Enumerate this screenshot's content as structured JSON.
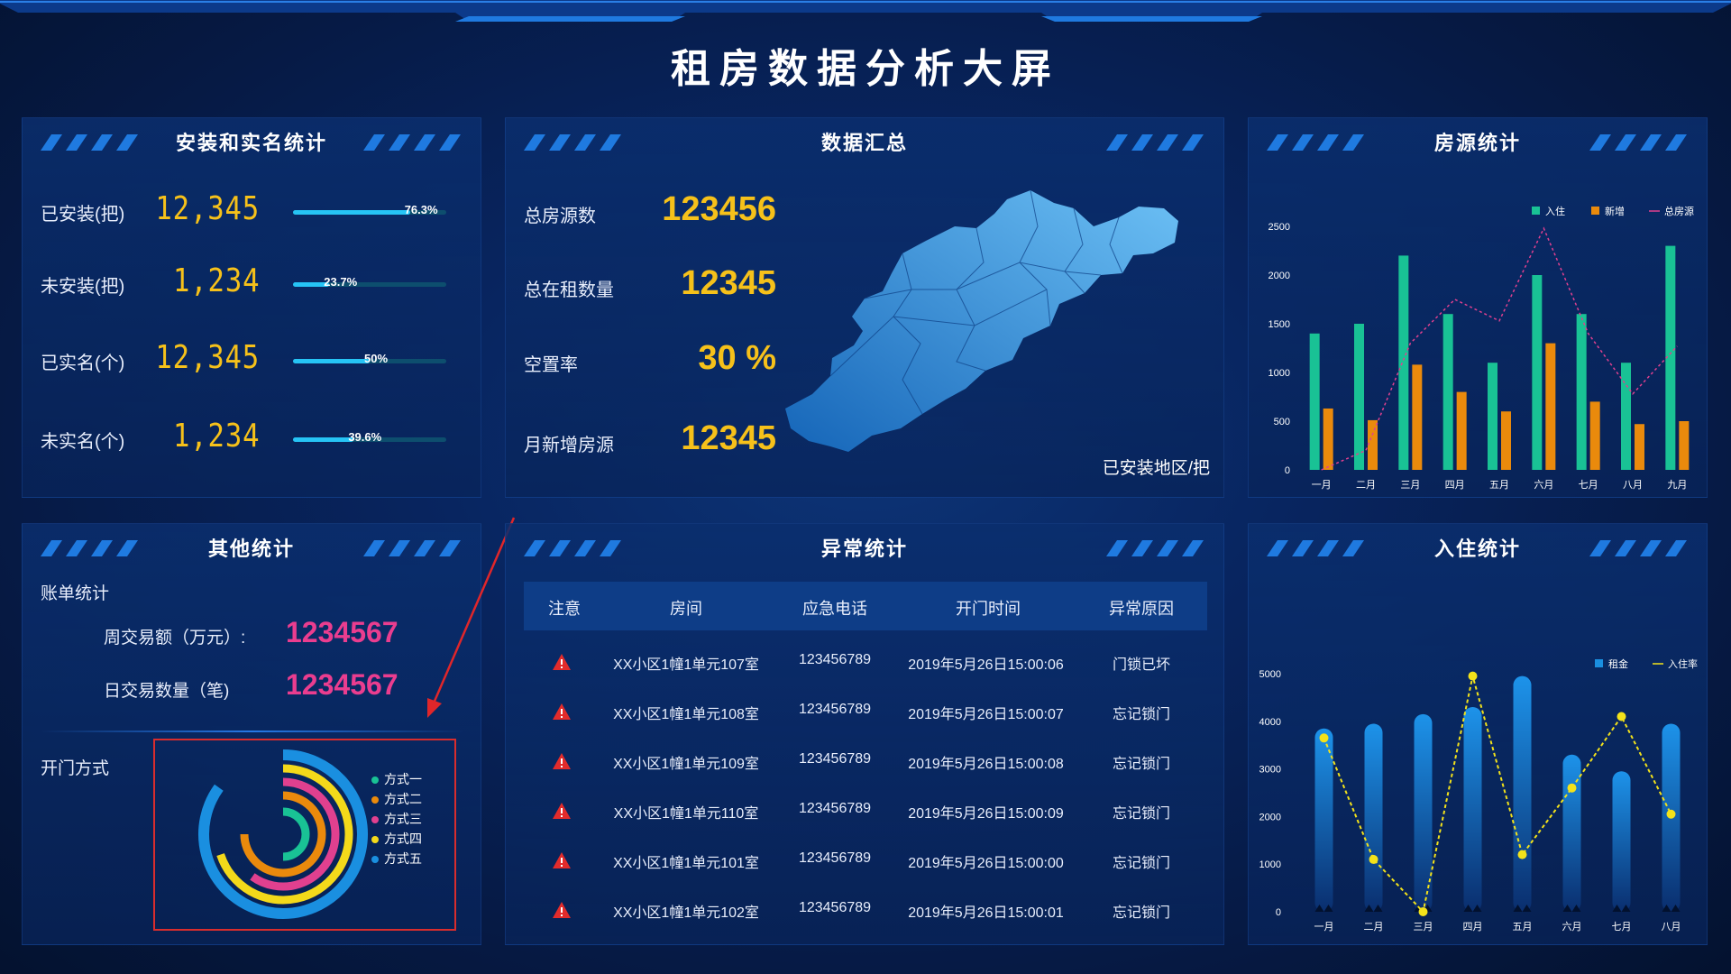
{
  "title": "租房数据分析大屏",
  "install": {
    "title": "安装和实名统计",
    "rows": [
      {
        "label": "已安装(把)",
        "value": "12,345",
        "percent_text": "76.3%",
        "percent": 76.3
      },
      {
        "label": "未安装(把)",
        "value": "1,234",
        "percent_text": "23.7%",
        "percent": 23.7
      },
      {
        "label": "已实名(个)",
        "value": "12,345",
        "percent_text": "50%",
        "percent": 50
      },
      {
        "label": "未实名(个)",
        "value": "1,234",
        "percent_text": "39.6%",
        "percent": 39.6
      }
    ]
  },
  "summary": {
    "title": "数据汇总",
    "rows": [
      {
        "label": "总房源数",
        "value": "123456"
      },
      {
        "label": "总在租数量",
        "value": "12345"
      },
      {
        "label": "空置率",
        "value": "30 %"
      },
      {
        "label": "月新增房源",
        "value": "12345"
      }
    ],
    "map_caption": "已安装地区/把"
  },
  "housing": {
    "title": "房源统计",
    "chart_data": {
      "type": "bar",
      "categories": [
        "一月",
        "二月",
        "三月",
        "四月",
        "五月",
        "六月",
        "七月",
        "八月",
        "九月"
      ],
      "ylim": [
        0,
        2500
      ],
      "yticks": [
        0,
        500,
        1000,
        1500,
        2000,
        2500
      ],
      "series": [
        {
          "name": "入住",
          "type": "bar",
          "color": "#19c295",
          "values": [
            1400,
            1500,
            2200,
            1600,
            1100,
            2000,
            1600,
            1100,
            2300
          ]
        },
        {
          "name": "新增",
          "type": "bar",
          "color": "#ea8a0c",
          "values": [
            630,
            510,
            1080,
            800,
            600,
            1300,
            700,
            470,
            500
          ]
        },
        {
          "name": "总房源",
          "type": "line",
          "color": "#e0408f",
          "values": [
            0,
            200,
            1300,
            1750,
            1530,
            2480,
            1400,
            780,
            1270
          ]
        }
      ],
      "legend": "top-right"
    }
  },
  "other": {
    "title": "其他统计",
    "bill_title": "账单统计",
    "weekly_label": "周交易额（万元）:",
    "weekly_value": "1234567",
    "daily_label": "日交易数量（笔)",
    "daily_value": "1234567",
    "door_title": "开门方式",
    "chart_data": {
      "type": "pie",
      "style": "radial-bar",
      "categories": [
        "方式一",
        "方式二",
        "方式三",
        "方式四",
        "方式五"
      ],
      "colors": [
        "#19c295",
        "#ea8a0c",
        "#e0408f",
        "#f3d91a",
        "#1a8fe0"
      ],
      "values": [
        50,
        75,
        60,
        70,
        85
      ],
      "legend": "right"
    }
  },
  "abnormal": {
    "title": "异常统计",
    "headers": [
      "注意",
      "房间",
      "应急电话",
      "开门时间",
      "异常原因"
    ],
    "rows": [
      {
        "room": "XX小区1幢1单元107室",
        "phone": "123456789",
        "time": "2019年5月26日15:00:06",
        "reason": "门锁已坏"
      },
      {
        "room": "XX小区1幢1单元108室",
        "phone": "123456789",
        "time": "2019年5月26日15:00:07",
        "reason": "忘记锁门"
      },
      {
        "room": "XX小区1幢1单元109室",
        "phone": "123456789",
        "time": "2019年5月26日15:00:08",
        "reason": "忘记锁门"
      },
      {
        "room": "XX小区1幢1单元110室",
        "phone": "123456789",
        "time": "2019年5月26日15:00:09",
        "reason": "忘记锁门"
      },
      {
        "room": "XX小区1幢1单元101室",
        "phone": "123456789",
        "time": "2019年5月26日15:00:00",
        "reason": "忘记锁门"
      },
      {
        "room": "XX小区1幢1单元102室",
        "phone": "123456789",
        "time": "2019年5月26日15:00:01",
        "reason": "忘记锁门"
      }
    ]
  },
  "checkin": {
    "title": "入住统计",
    "chart_data": {
      "type": "bar",
      "categories": [
        "一月",
        "二月",
        "三月",
        "四月",
        "五月",
        "六月",
        "七月",
        "八月"
      ],
      "ylim": [
        0,
        5000
      ],
      "yticks": [
        0,
        1000,
        2000,
        3000,
        4000,
        5000
      ],
      "series": [
        {
          "name": "租金",
          "type": "bar",
          "color": "#1a8fe0",
          "values": [
            3850,
            3950,
            4150,
            4300,
            4950,
            3300,
            2950,
            3950
          ]
        },
        {
          "name": "入住率",
          "type": "line",
          "color": "#f3e21a",
          "values": [
            3650,
            1100,
            0,
            4950,
            1200,
            2600,
            4100,
            2050
          ]
        }
      ],
      "legend": "top-right"
    }
  }
}
